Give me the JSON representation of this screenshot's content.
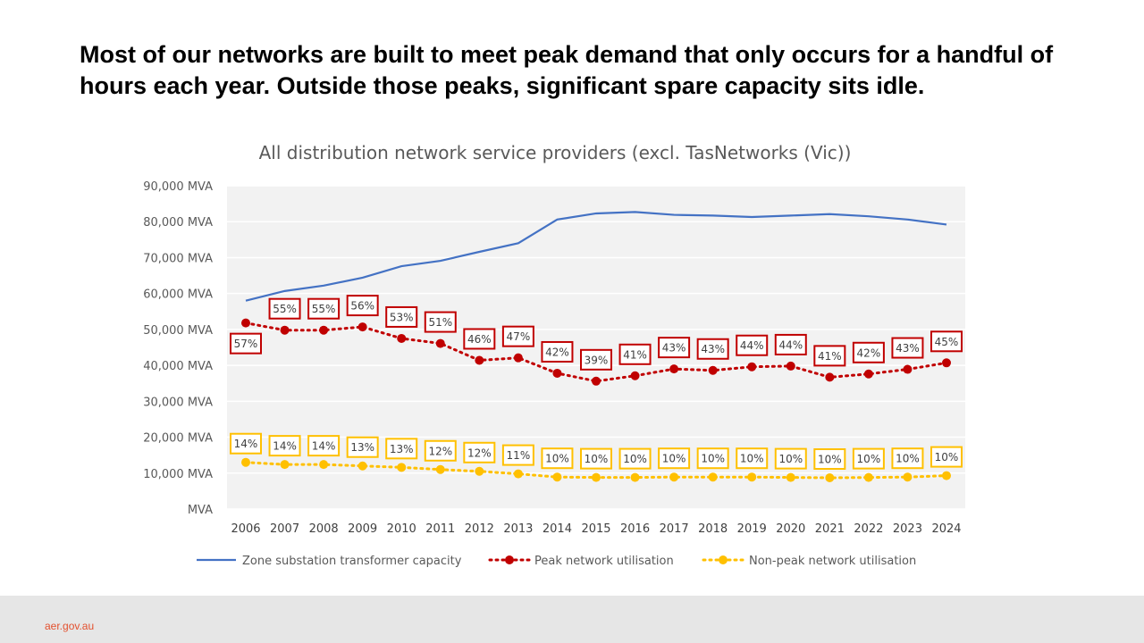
{
  "slide": {
    "headline": "Most of our networks are built to meet peak demand that only occurs for a handful of hours each year. Outside those peaks, significant spare capacity sits idle.",
    "footer_link": "aer.gov.au"
  },
  "colors": {
    "capacity": "#4472c4",
    "peak": "#c00000",
    "nonpeak": "#ffc000",
    "plot_bg": "#f2f2f2",
    "gridline": "#ffffff",
    "footer_bg": "#e6e6e6",
    "footer_text": "#e3502e"
  },
  "chart_data": {
    "type": "line",
    "title": "All distribution network service providers (excl. TasNetworks (Vic))",
    "xlabel": "",
    "ylabel": "",
    "ylim": [
      0,
      90000
    ],
    "grid": true,
    "legend_position": "bottom",
    "y_ticks": [
      "MVA",
      "10,000 MVA",
      "20,000 MVA",
      "30,000 MVA",
      "40,000 MVA",
      "50,000 MVA",
      "60,000 MVA",
      "70,000 MVA",
      "80,000 MVA",
      "90,000 MVA"
    ],
    "y_tick_values": [
      0,
      10000,
      20000,
      30000,
      40000,
      50000,
      60000,
      70000,
      80000,
      90000
    ],
    "categories": [
      "2006",
      "2007",
      "2008",
      "2009",
      "2010",
      "2011",
      "2012",
      "2013",
      "2014",
      "2015",
      "2016",
      "2017",
      "2018",
      "2019",
      "2020",
      "2021",
      "2022",
      "2023",
      "2024"
    ],
    "series": [
      {
        "name": "Zone substation transformer capacity",
        "key": "capacity",
        "style": "solid",
        "values": [
          58000,
          60700,
          62200,
          64400,
          67600,
          69100,
          71600,
          74000,
          80600,
          82300,
          82700,
          81900,
          81700,
          81300,
          81700,
          82100,
          81500,
          80600,
          79200
        ],
        "labels": []
      },
      {
        "name": "Peak network utilisation",
        "key": "peak",
        "style": "dotted-markers",
        "values": [
          51800,
          49800,
          49800,
          50700,
          47500,
          46100,
          41400,
          42100,
          37800,
          35600,
          37100,
          39000,
          38600,
          39600,
          39800,
          36700,
          37600,
          38900,
          40700
        ],
        "labels": [
          "57%",
          "55%",
          "55%",
          "56%",
          "53%",
          "51%",
          "46%",
          "47%",
          "42%",
          "39%",
          "41%",
          "43%",
          "43%",
          "44%",
          "44%",
          "41%",
          "42%",
          "43%",
          "45%"
        ]
      },
      {
        "name": "Non-peak network utilisation",
        "key": "nonpeak",
        "style": "dotted-markers",
        "values": [
          13000,
          12400,
          12400,
          12000,
          11600,
          11000,
          10500,
          9800,
          8900,
          8800,
          8800,
          8900,
          8900,
          8900,
          8800,
          8700,
          8800,
          8900,
          9300
        ],
        "labels": [
          "14%",
          "14%",
          "14%",
          "13%",
          "13%",
          "12%",
          "12%",
          "11%",
          "10%",
          "10%",
          "10%",
          "10%",
          "10%",
          "10%",
          "10%",
          "10%",
          "10%",
          "10%",
          "10%"
        ]
      }
    ]
  }
}
